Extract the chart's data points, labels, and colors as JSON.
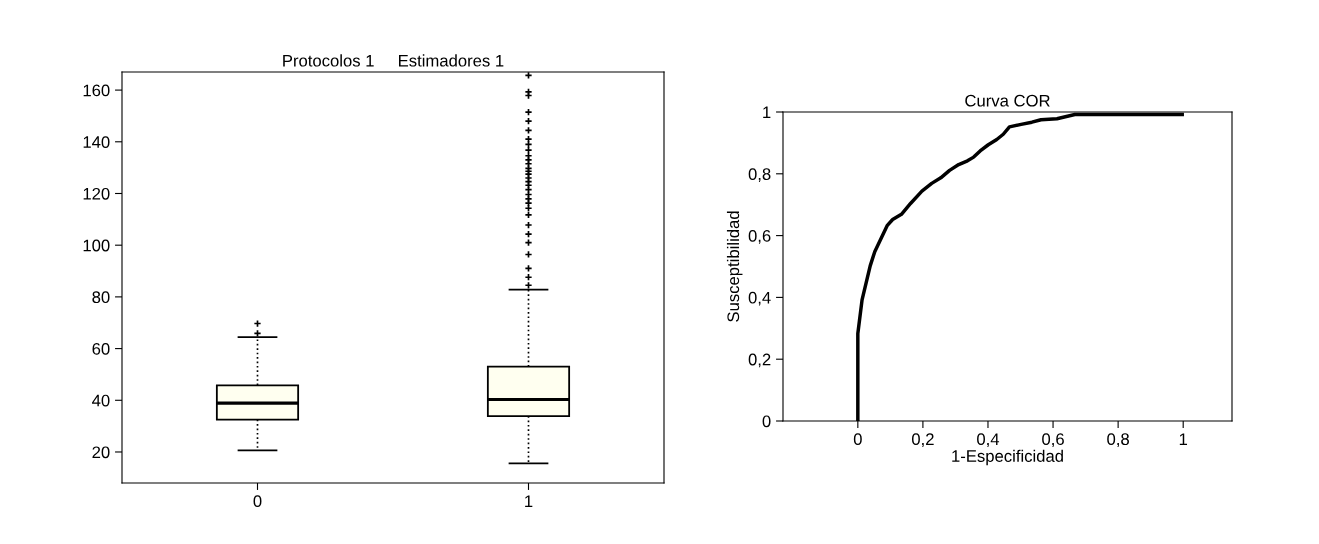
{
  "chart_data": [
    {
      "type": "box",
      "title": "Protocolos 1     Estimadores 1",
      "categories": [
        "0",
        "1"
      ],
      "color": "#fffff0",
      "grid": false,
      "marker": "cross",
      "boxes": [
        {
          "low": 20.6,
          "q1": 32.5,
          "median": 38.9,
          "q3": 45.8,
          "high": 64.4,
          "outliers": [
            65.9,
            69.7
          ]
        },
        {
          "low": 15.6,
          "q1": 33.9,
          "median": 40.3,
          "q3": 53,
          "high": 82.8,
          "outliers": [
            84.5,
            87.6,
            91,
            96.4,
            101,
            104.3,
            107.8,
            111.7,
            114.3,
            116.3,
            117.9,
            119.6,
            121.5,
            123.2,
            124.6,
            126,
            127.5,
            128.6,
            129.7,
            131.5,
            133,
            134.6,
            136.8,
            139,
            141,
            144.4,
            148,
            151.5,
            157.9,
            159.3,
            165.7
          ]
        }
      ],
      "ylim": [
        8,
        167
      ],
      "yticks": [
        20,
        40,
        60,
        80,
        100,
        120,
        140,
        160
      ]
    },
    {
      "type": "line",
      "title": "Curva COR",
      "xlabel": "1-Especificidad",
      "ylabel": "Susceptibilidad",
      "grid": false,
      "series": [
        {
          "color": "#000000",
          "x": [
            0,
            0,
            0.013,
            0.038,
            0.052,
            0.09,
            0.107,
            0.134,
            0.162,
            0.197,
            0.227,
            0.255,
            0.282,
            0.31,
            0.337,
            0.356,
            0.376,
            0.401,
            0.427,
            0.447,
            0.466,
            0.502,
            0.535,
            0.563,
            0.612,
            0.667,
            0.997
          ],
          "values": [
            0,
            0.283,
            0.392,
            0.502,
            0.548,
            0.632,
            0.652,
            0.669,
            0.704,
            0.744,
            0.769,
            0.787,
            0.811,
            0.83,
            0.842,
            0.854,
            0.874,
            0.894,
            0.911,
            0.928,
            0.952,
            0.96,
            0.967,
            0.975,
            0.978,
            0.992,
            0.992
          ]
        }
      ],
      "xlim": [
        -0.23,
        1.15
      ],
      "ylim": [
        0,
        1
      ],
      "xticks": [
        0,
        {
          "value": 0.2,
          "label": "0,2"
        },
        {
          "value": 0.4,
          "label": "0,4"
        },
        {
          "value": 0.6,
          "label": "0,6"
        },
        {
          "value": 0.8,
          "label": "0,8"
        },
        1
      ],
      "yticks": [
        0,
        {
          "value": 0.2,
          "label": "0,2"
        },
        {
          "value": 0.4,
          "label": "0,4"
        },
        {
          "value": 0.6,
          "label": "0,6"
        },
        {
          "value": 0.8,
          "label": "0,8"
        },
        1
      ]
    }
  ]
}
